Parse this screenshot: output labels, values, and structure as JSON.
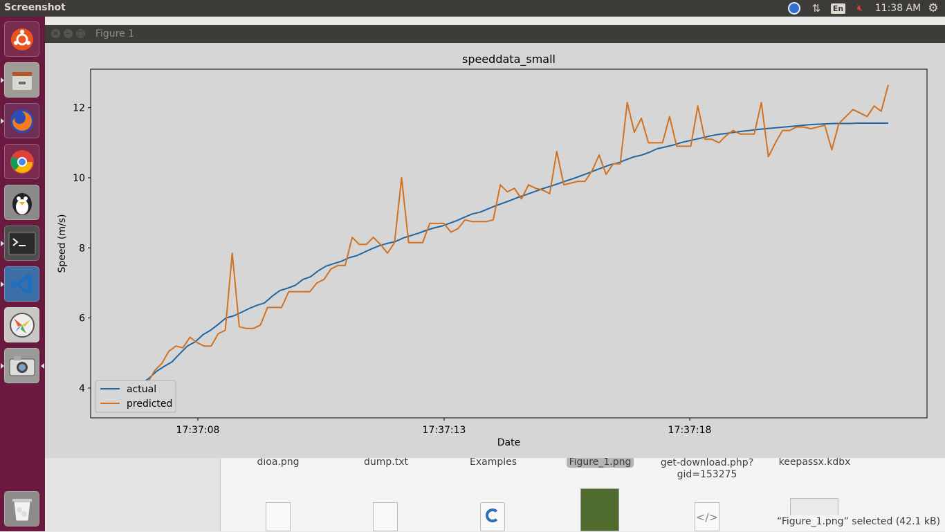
{
  "top_panel": {
    "title": "Screenshot",
    "language": "En",
    "clock": "11:38 AM"
  },
  "launcher": {
    "items": [
      {
        "name": "ubuntu-dash-icon"
      },
      {
        "name": "files-icon"
      },
      {
        "name": "firefox-icon"
      },
      {
        "name": "chrome-icon"
      },
      {
        "name": "penguin-app-icon"
      },
      {
        "name": "terminal-icon"
      },
      {
        "name": "vscode-icon"
      },
      {
        "name": "pinwheel-app-icon"
      },
      {
        "name": "camera-icon"
      },
      {
        "name": "trash-icon"
      }
    ]
  },
  "file_manager": {
    "files": [
      "dioa.png",
      "dump.txt",
      "Examples",
      "Figure_1.png",
      "get-download.php?\ngid=153275",
      "keepassx.kdbx"
    ],
    "status": "“Figure_1.png” selected  (42.1 kB)"
  },
  "window": {
    "title": "Figure 1"
  },
  "chart_data": {
    "type": "line",
    "title": "speeddata_small",
    "xlabel": "Date",
    "ylabel": "Speed (m/s)",
    "x_ticks": [
      "17:37:08",
      "17:37:13",
      "17:37:18"
    ],
    "y_ticks": [
      4,
      6,
      8,
      10,
      12
    ],
    "ylim": [
      3.15,
      13.1
    ],
    "legend": "lower-left",
    "grid": false,
    "colors": {
      "actual": "#2165a0",
      "predicted": "#d1711f"
    },
    "series": [
      {
        "name": "actual",
        "values": [
          4.0,
          4.12,
          4.28,
          4.48,
          4.62,
          4.75,
          4.98,
          5.2,
          5.32,
          5.52,
          5.65,
          5.82,
          6.0,
          6.06,
          6.16,
          6.27,
          6.36,
          6.43,
          6.62,
          6.78,
          6.85,
          6.93,
          7.1,
          7.18,
          7.35,
          7.48,
          7.55,
          7.62,
          7.72,
          7.78,
          7.88,
          7.98,
          8.07,
          8.13,
          8.18,
          8.28,
          8.35,
          8.42,
          8.5,
          8.57,
          8.62,
          8.7,
          8.78,
          8.88,
          8.97,
          9.02,
          9.11,
          9.2,
          9.28,
          9.36,
          9.45,
          9.52,
          9.6,
          9.68,
          9.75,
          9.82,
          9.9,
          9.97,
          10.05,
          10.13,
          10.22,
          10.3,
          10.38,
          10.43,
          10.52,
          10.6,
          10.65,
          10.73,
          10.83,
          10.88,
          10.93,
          11.0,
          11.05,
          11.1,
          11.15,
          11.2,
          11.24,
          11.27,
          11.3,
          11.33,
          11.35,
          11.38,
          11.4,
          11.42,
          11.44,
          11.46,
          11.48,
          11.5,
          11.52,
          11.53,
          11.54,
          11.55,
          11.55,
          11.55,
          11.56,
          11.56,
          11.56,
          11.56,
          11.56
        ]
      },
      {
        "name": "predicted",
        "values": [
          3.9,
          4.05,
          4.15,
          4.5,
          4.7,
          5.05,
          5.2,
          5.15,
          5.45,
          5.3,
          5.2,
          5.2,
          5.55,
          5.65,
          7.85,
          5.75,
          5.7,
          5.7,
          5.8,
          6.3,
          6.3,
          6.3,
          6.75,
          6.75,
          6.75,
          6.75,
          7.0,
          7.1,
          7.4,
          7.5,
          7.5,
          8.3,
          8.1,
          8.1,
          8.3,
          8.1,
          7.85,
          8.15,
          10.0,
          8.15,
          8.15,
          8.15,
          8.7,
          8.7,
          8.7,
          8.45,
          8.55,
          8.8,
          8.75,
          8.75,
          8.75,
          8.8,
          9.8,
          9.6,
          9.7,
          9.4,
          9.8,
          9.7,
          9.65,
          9.55,
          10.75,
          9.8,
          9.85,
          9.9,
          9.9,
          10.2,
          10.65,
          10.1,
          10.4,
          10.4,
          12.15,
          11.3,
          11.7,
          11.0,
          11.0,
          11.0,
          11.75,
          10.9,
          10.9,
          10.9,
          12.05,
          11.1,
          11.1,
          11.0,
          11.2,
          11.35,
          11.25,
          11.25,
          11.25,
          12.15,
          10.6,
          11.0,
          11.35,
          11.35,
          11.45,
          11.45,
          11.4,
          11.45,
          11.5,
          10.8,
          11.55,
          11.75,
          11.95,
          11.85,
          11.75,
          12.05,
          11.9,
          12.65
        ]
      }
    ]
  }
}
